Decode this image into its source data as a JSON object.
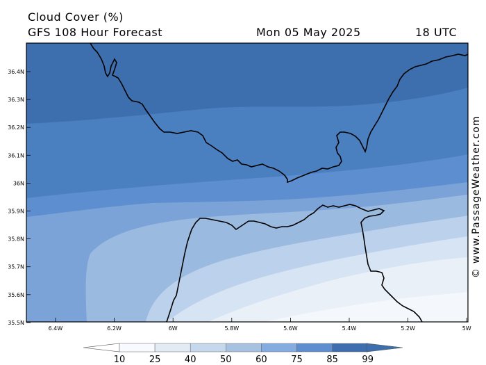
{
  "header": {
    "title": "Cloud Cover (%)",
    "forecast": "GFS 108 Hour Forecast",
    "date": "Mon 05 May 2025",
    "time": "18 UTC"
  },
  "watermark": "© www.PassageWeather.com",
  "axes": {
    "lat_labels": [
      "36.4N",
      "36.3N",
      "36.2N",
      "36.1N",
      "36N",
      "35.9N",
      "35.8N",
      "35.7N",
      "35.6N",
      "35.5N"
    ],
    "lon_labels": [
      "6.4W",
      "6.2W",
      "6W",
      "5.8W",
      "5.6W",
      "5.4W",
      "5.2W",
      "5W"
    ]
  },
  "legend": {
    "ticks": [
      "10",
      "25",
      "40",
      "50",
      "60",
      "75",
      "85",
      "99"
    ],
    "colors": [
      "#f7fafe",
      "#e2eaf4",
      "#c5d8ec",
      "#a7c2e0",
      "#84ace0",
      "#5d8ecf",
      "#3d6ead"
    ]
  },
  "palette": {
    "c_dark": "#3d6ead",
    "c_1": "#4a7fc0",
    "c_2": "#5d8ecf",
    "c_3": "#7ba3d8",
    "c_4": "#9bbae0",
    "c_5": "#bcd2ec",
    "c_6": "#d6e4f4",
    "c_7": "#e9f0f8",
    "c_8": "#f4f8fd",
    "coast": "#000000"
  }
}
